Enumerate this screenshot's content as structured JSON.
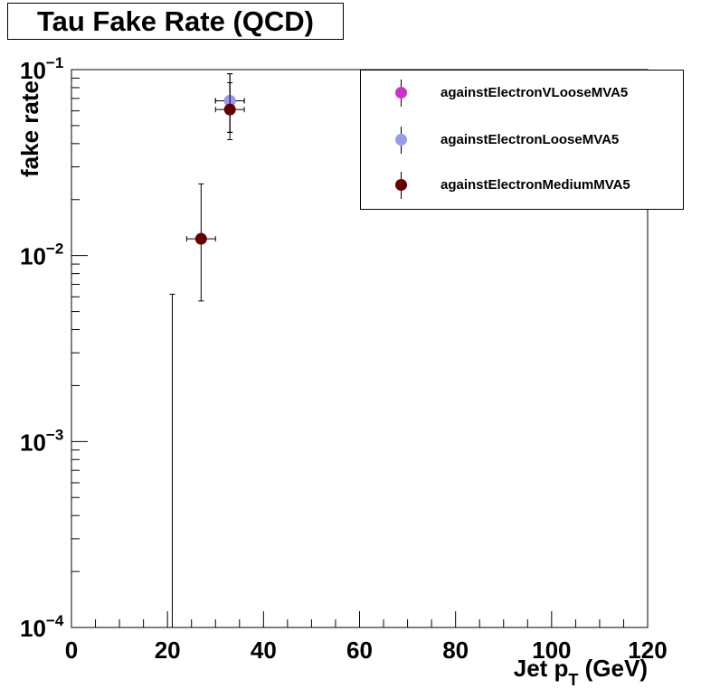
{
  "chart_data": {
    "type": "scatter",
    "title": "Tau Fake Rate (QCD)",
    "xlabel": "Jet p",
    "xlabel_sub": "T",
    "xlabel_unit": " (GeV)",
    "ylabel": "fake rate",
    "xlim": [
      0,
      120
    ],
    "ylim": [
      0.0001,
      0.1
    ],
    "y_scale": "log",
    "grid": false,
    "legend_position": "top-right",
    "x_ticks": [
      {
        "value": 0,
        "label": "0"
      },
      {
        "value": 20,
        "label": "20"
      },
      {
        "value": 40,
        "label": "40"
      },
      {
        "value": 60,
        "label": "60"
      },
      {
        "value": 80,
        "label": "80"
      },
      {
        "value": 100,
        "label": "100"
      },
      {
        "value": 120,
        "label": "120"
      }
    ],
    "y_ticks": [
      {
        "value": 0.1,
        "base": "10",
        "exp": "−1"
      },
      {
        "value": 0.01,
        "base": "10",
        "exp": "−2"
      },
      {
        "value": 0.001,
        "base": "10",
        "exp": "−3"
      },
      {
        "value": 0.0001,
        "base": "10",
        "exp": "−4"
      }
    ],
    "series": [
      {
        "name": "againstElectronVLooseMVA5",
        "color": "#cc33cc",
        "points": [
          {
            "x": 33,
            "y": 0.068,
            "xerr": 3,
            "ylo": 0.046,
            "yhi": 0.095
          }
        ]
      },
      {
        "name": "againstElectronLooseMVA5",
        "color": "#9999ee",
        "points": [
          {
            "x": 33,
            "y": 0.068,
            "xerr": 3,
            "ylo": 0.046,
            "yhi": 0.095
          }
        ]
      },
      {
        "name": "againstElectronMediumMVA5",
        "color": "#660000",
        "points": [
          {
            "x": 27,
            "y": 0.0123,
            "xerr": 3,
            "ylo": 0.0057,
            "yhi": 0.0243
          },
          {
            "x": 33,
            "y": 0.061,
            "xerr": 3,
            "ylo": 0.042,
            "yhi": 0.085
          },
          {
            "x": 21,
            "y": 0.0001,
            "xerr": 0,
            "ylo": 0.0001,
            "yhi": 0.0062
          }
        ]
      }
    ]
  }
}
